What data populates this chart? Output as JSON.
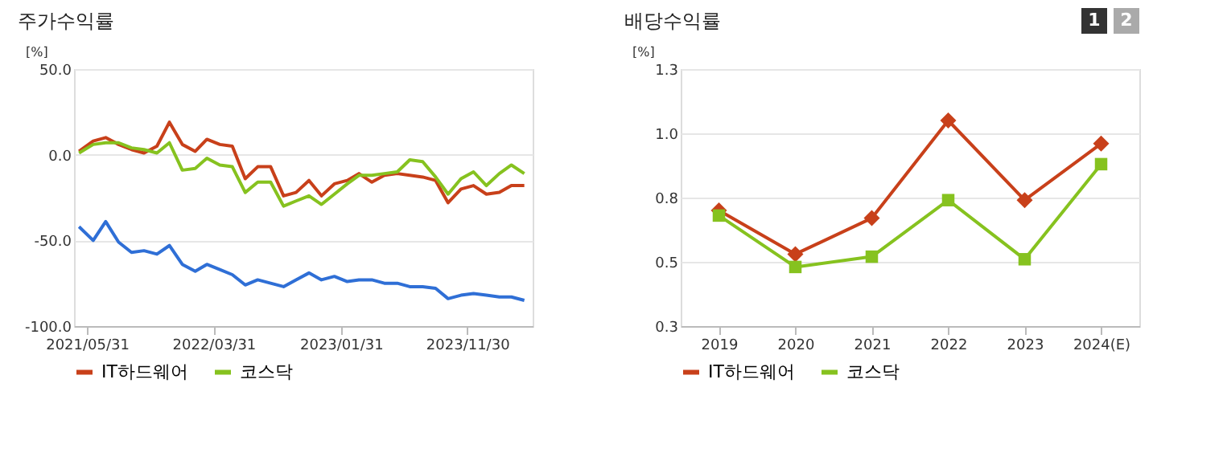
{
  "chart_data": [
    {
      "type": "line",
      "title": "주가수익률",
      "ylabel": "[%]",
      "legend": "bottom",
      "grid": "y",
      "marker": "none",
      "line_style": "solid",
      "xlim": [
        "2021-04-30",
        "2024-05-05"
      ],
      "xticks": [
        {
          "value": "2021-05-31",
          "label": "2021/05/31"
        },
        {
          "value": "2022-03-31",
          "label": "2022/03/31"
        },
        {
          "value": "2023-01-31",
          "label": "2023/01/31"
        },
        {
          "value": "2023-11-30",
          "label": "2023/11/30"
        }
      ],
      "ylim": [
        -100,
        50
      ],
      "yticks": [
        {
          "value": -100,
          "label": "-100.0"
        },
        {
          "value": -50,
          "label": "-50.0"
        },
        {
          "value": 0,
          "label": "0.0"
        },
        {
          "value": 50,
          "label": "50.0"
        }
      ],
      "x": [
        "2021-05-12",
        "2021-06-15",
        "2021-07-15",
        "2021-08-15",
        "2021-09-15",
        "2021-10-15",
        "2021-11-15",
        "2021-12-15",
        "2022-01-15",
        "2022-02-15",
        "2022-03-15",
        "2022-04-15",
        "2022-05-15",
        "2022-06-15",
        "2022-07-15",
        "2022-08-15",
        "2022-09-15",
        "2022-10-15",
        "2022-11-15",
        "2022-12-15",
        "2023-01-15",
        "2023-02-15",
        "2023-03-15",
        "2023-04-15",
        "2023-05-15",
        "2023-06-15",
        "2023-07-15",
        "2023-08-15",
        "2023-09-15",
        "2023-10-15",
        "2023-11-15",
        "2023-12-15",
        "2024-01-15",
        "2024-02-15",
        "2024-03-15",
        "2024-04-15"
      ],
      "series": [
        {
          "color": "#2f6fd6",
          "values": [
            -42,
            -50,
            -39,
            -51,
            -57,
            -56,
            -58,
            -53,
            -64,
            -68,
            -64,
            -67,
            -70,
            -76,
            -73,
            -75,
            -77,
            -73,
            -69,
            -73,
            -71,
            -74,
            -73,
            -73,
            -75,
            -75,
            -77,
            -77,
            -78,
            -84,
            -82,
            -81,
            -82,
            -83,
            -83,
            -85
          ]
        },
        {
          "name": "IT하드웨어",
          "color": "#c8401a",
          "values": [
            2,
            8,
            10,
            6,
            3,
            1,
            5,
            19,
            6,
            2,
            9,
            6,
            5,
            -14,
            -7,
            -7,
            -24,
            -22,
            -15,
            -24,
            -17,
            -15,
            -11,
            -16,
            -12,
            -11,
            -12,
            -13,
            -15,
            -28,
            -20,
            -18,
            -23,
            -22,
            -18,
            -18
          ]
        },
        {
          "name": "코스닥",
          "color": "#86c21f",
          "values": [
            1,
            6,
            7,
            7,
            4,
            3,
            1,
            7,
            -9,
            -8,
            -2,
            -6,
            -7,
            -22,
            -16,
            -16,
            -30,
            -27,
            -24,
            -29,
            -23,
            -17,
            -12,
            -12,
            -11,
            -10,
            -3,
            -4,
            -13,
            -23,
            -14,
            -10,
            -18,
            -11,
            -6,
            -11
          ]
        }
      ]
    },
    {
      "type": "line",
      "title": "배당수익률",
      "ylabel": "[%]",
      "legend": "bottom",
      "grid": "y",
      "line_style": "solid",
      "annotations": [
        "1",
        "2"
      ],
      "categories": [
        "2019",
        "2020",
        "2021",
        "2022",
        "2023",
        "2024(E)"
      ],
      "ylim": [
        0.25,
        1.25
      ],
      "yticks": [
        {
          "value": 0.25,
          "label": "0.3"
        },
        {
          "value": 0.5,
          "label": "0.5"
        },
        {
          "value": 0.75,
          "label": "0.8"
        },
        {
          "value": 1.0,
          "label": "1.0"
        },
        {
          "value": 1.25,
          "label": "1.3"
        }
      ],
      "series": [
        {
          "name": "IT하드웨어",
          "color": "#c8401a",
          "marker": "diamond",
          "values": [
            0.7,
            0.53,
            0.67,
            1.05,
            0.74,
            0.96
          ]
        },
        {
          "name": "코스닥",
          "color": "#86c21f",
          "marker": "square",
          "values": [
            0.68,
            0.48,
            0.52,
            0.74,
            0.51,
            0.88
          ]
        }
      ]
    }
  ]
}
